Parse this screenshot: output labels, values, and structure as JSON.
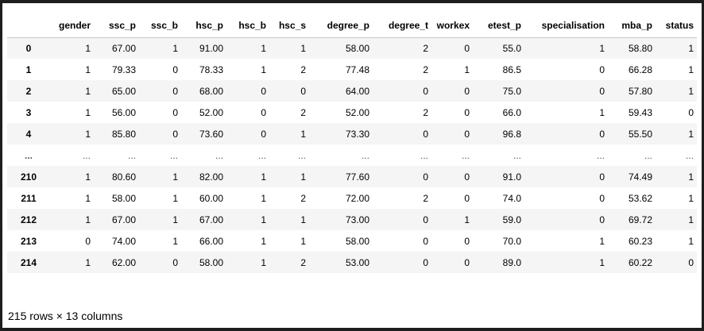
{
  "table": {
    "columns": [
      "",
      "gender",
      "ssc_p",
      "ssc_b",
      "hsc_p",
      "hsc_b",
      "hsc_s",
      "degree_p",
      "degree_t",
      "workex",
      "etest_p",
      "specialisation",
      "mba_p",
      "status"
    ],
    "rows": [
      [
        "0",
        "1",
        "67.00",
        "1",
        "91.00",
        "1",
        "1",
        "58.00",
        "2",
        "0",
        "55.0",
        "1",
        "58.80",
        "1"
      ],
      [
        "1",
        "1",
        "79.33",
        "0",
        "78.33",
        "1",
        "2",
        "77.48",
        "2",
        "1",
        "86.5",
        "0",
        "66.28",
        "1"
      ],
      [
        "2",
        "1",
        "65.00",
        "0",
        "68.00",
        "0",
        "0",
        "64.00",
        "0",
        "0",
        "75.0",
        "0",
        "57.80",
        "1"
      ],
      [
        "3",
        "1",
        "56.00",
        "0",
        "52.00",
        "0",
        "2",
        "52.00",
        "2",
        "0",
        "66.0",
        "1",
        "59.43",
        "0"
      ],
      [
        "4",
        "1",
        "85.80",
        "0",
        "73.60",
        "0",
        "1",
        "73.30",
        "0",
        "0",
        "96.8",
        "0",
        "55.50",
        "1"
      ],
      [
        "...",
        "...",
        "...",
        "...",
        "...",
        "...",
        "...",
        "...",
        "...",
        "...",
        "...",
        "...",
        "...",
        "..."
      ],
      [
        "210",
        "1",
        "80.60",
        "1",
        "82.00",
        "1",
        "1",
        "77.60",
        "0",
        "0",
        "91.0",
        "0",
        "74.49",
        "1"
      ],
      [
        "211",
        "1",
        "58.00",
        "1",
        "60.00",
        "1",
        "2",
        "72.00",
        "2",
        "0",
        "74.0",
        "0",
        "53.62",
        "1"
      ],
      [
        "212",
        "1",
        "67.00",
        "1",
        "67.00",
        "1",
        "1",
        "73.00",
        "0",
        "1",
        "59.0",
        "0",
        "69.72",
        "1"
      ],
      [
        "213",
        "0",
        "74.00",
        "1",
        "66.00",
        "1",
        "1",
        "58.00",
        "0",
        "0",
        "70.0",
        "1",
        "60.23",
        "1"
      ],
      [
        "214",
        "1",
        "62.00",
        "0",
        "58.00",
        "1",
        "2",
        "53.00",
        "0",
        "0",
        "89.0",
        "1",
        "60.22",
        "0"
      ]
    ]
  },
  "footer": {
    "shape": "215 rows × 13 columns"
  },
  "colors": {
    "stripe": "#f5f5f5",
    "header_border": "#c8c8c8",
    "frame": "#1e1e1e"
  }
}
